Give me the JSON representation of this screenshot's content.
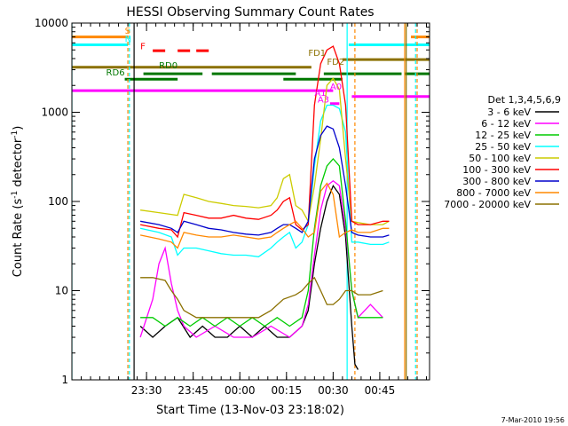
{
  "chart_data": {
    "type": "line",
    "title": "HESSI Observing Summary Count Rates",
    "xlabel": "Start Time (13-Nov-03 23:18:02)",
    "ylabel": "Count Rate (s",
    "ylabel_sup": "-1",
    "ylabel_tail": " detector",
    "ylabel_sup2": "-1",
    "ylabel_close": ")",
    "y_scale": "log",
    "ylim": [
      1,
      10000
    ],
    "xlim_min": [
      -12,
      80
    ],
    "x_ticks": [
      {
        "min": 12,
        "label": "23:30"
      },
      {
        "min": 27,
        "label": "23:45"
      },
      {
        "min": 42,
        "label": "00:00"
      },
      {
        "min": 57,
        "label": "00:15"
      },
      {
        "min": 72,
        "label": "00:30"
      },
      {
        "min": 87,
        "label": "00:45"
      }
    ],
    "y_ticks": [
      {
        "v": 1,
        "label": "1"
      },
      {
        "v": 10,
        "label": "10"
      },
      {
        "v": 100,
        "label": "100"
      },
      {
        "v": 1000,
        "label": "1000"
      },
      {
        "v": 10000,
        "label": "10000"
      }
    ],
    "legend_title": "Det 1,3,4,5,6,9",
    "legend_placement": "right",
    "series": [
      {
        "name": "3 - 6 keV",
        "color": "#000000",
        "points": [
          [
            10,
            4
          ],
          [
            14,
            3
          ],
          [
            18,
            4
          ],
          [
            22,
            5
          ],
          [
            26,
            3
          ],
          [
            30,
            4
          ],
          [
            34,
            3
          ],
          [
            38,
            3
          ],
          [
            42,
            4
          ],
          [
            46,
            3
          ],
          [
            50,
            4
          ],
          [
            54,
            3
          ],
          [
            58,
            3
          ],
          [
            62,
            4
          ],
          [
            64,
            6
          ],
          [
            66,
            20
          ],
          [
            68,
            50
          ],
          [
            70,
            100
          ],
          [
            72,
            150
          ],
          [
            74,
            120
          ],
          [
            76,
            40
          ],
          [
            78,
            4
          ],
          [
            79,
            1.5
          ],
          [
            80,
            1.3
          ]
        ]
      },
      {
        "name": "6 - 12 keV",
        "color": "#ff00ff",
        "points": [
          [
            10,
            3
          ],
          [
            14,
            8
          ],
          [
            16,
            20
          ],
          [
            18,
            30
          ],
          [
            20,
            12
          ],
          [
            22,
            6
          ],
          [
            24,
            4
          ],
          [
            28,
            3
          ],
          [
            34,
            4
          ],
          [
            40,
            3
          ],
          [
            46,
            3
          ],
          [
            52,
            4
          ],
          [
            58,
            3
          ],
          [
            62,
            4
          ],
          [
            64,
            7
          ],
          [
            66,
            25
          ],
          [
            68,
            80
          ],
          [
            70,
            150
          ],
          [
            72,
            170
          ],
          [
            74,
            150
          ],
          [
            76,
            50
          ],
          [
            78,
            10
          ],
          [
            80,
            5
          ],
          [
            84,
            7
          ],
          [
            88,
            5
          ]
        ]
      },
      {
        "name": "12 - 25 keV",
        "color": "#00cc00",
        "points": [
          [
            10,
            5
          ],
          [
            14,
            5
          ],
          [
            18,
            4
          ],
          [
            22,
            5
          ],
          [
            26,
            4
          ],
          [
            30,
            5
          ],
          [
            34,
            4
          ],
          [
            38,
            5
          ],
          [
            42,
            4
          ],
          [
            46,
            5
          ],
          [
            50,
            4
          ],
          [
            54,
            5
          ],
          [
            58,
            4
          ],
          [
            62,
            5
          ],
          [
            64,
            10
          ],
          [
            66,
            50
          ],
          [
            68,
            150
          ],
          [
            70,
            250
          ],
          [
            72,
            300
          ],
          [
            74,
            250
          ],
          [
            76,
            60
          ],
          [
            78,
            10
          ],
          [
            80,
            5
          ],
          [
            84,
            5
          ],
          [
            88,
            5
          ]
        ]
      },
      {
        "name": "25 - 50 keV",
        "color": "#00ffff",
        "points": [
          [
            10,
            50
          ],
          [
            16,
            45
          ],
          [
            20,
            40
          ],
          [
            22,
            25
          ],
          [
            24,
            30
          ],
          [
            28,
            30
          ],
          [
            32,
            28
          ],
          [
            36,
            26
          ],
          [
            40,
            25
          ],
          [
            44,
            25
          ],
          [
            48,
            24
          ],
          [
            52,
            30
          ],
          [
            54,
            35
          ],
          [
            56,
            40
          ],
          [
            58,
            45
          ],
          [
            60,
            30
          ],
          [
            62,
            35
          ],
          [
            64,
            55
          ],
          [
            66,
            250
          ],
          [
            68,
            800
          ],
          [
            70,
            1200
          ],
          [
            72,
            1200
          ],
          [
            74,
            1100
          ],
          [
            76,
            600
          ],
          [
            78,
            35
          ],
          [
            80,
            35
          ],
          [
            84,
            33
          ],
          [
            88,
            33
          ],
          [
            90,
            35
          ]
        ]
      },
      {
        "name": "50 - 100 keV",
        "color": "#cccc00",
        "points": [
          [
            10,
            80
          ],
          [
            16,
            75
          ],
          [
            22,
            70
          ],
          [
            24,
            120
          ],
          [
            28,
            110
          ],
          [
            32,
            100
          ],
          [
            36,
            95
          ],
          [
            40,
            90
          ],
          [
            44,
            88
          ],
          [
            48,
            85
          ],
          [
            52,
            90
          ],
          [
            54,
            110
          ],
          [
            56,
            180
          ],
          [
            58,
            200
          ],
          [
            60,
            90
          ],
          [
            62,
            80
          ],
          [
            64,
            60
          ],
          [
            66,
            150
          ],
          [
            68,
            500
          ],
          [
            70,
            2000
          ],
          [
            72,
            2400
          ],
          [
            74,
            1800
          ],
          [
            76,
            300
          ],
          [
            78,
            60
          ],
          [
            80,
            58
          ],
          [
            84,
            55
          ],
          [
            88,
            55
          ],
          [
            90,
            60
          ]
        ]
      },
      {
        "name": "100 - 300 keV",
        "color": "#ff0000",
        "points": [
          [
            10,
            55
          ],
          [
            16,
            50
          ],
          [
            20,
            48
          ],
          [
            22,
            40
          ],
          [
            24,
            75
          ],
          [
            28,
            70
          ],
          [
            32,
            65
          ],
          [
            36,
            65
          ],
          [
            40,
            70
          ],
          [
            44,
            65
          ],
          [
            48,
            63
          ],
          [
            52,
            70
          ],
          [
            54,
            80
          ],
          [
            56,
            100
          ],
          [
            58,
            110
          ],
          [
            60,
            55
          ],
          [
            62,
            48
          ],
          [
            64,
            55
          ],
          [
            66,
            1200
          ],
          [
            68,
            3500
          ],
          [
            70,
            5000
          ],
          [
            72,
            5500
          ],
          [
            74,
            3500
          ],
          [
            76,
            1200
          ],
          [
            78,
            60
          ],
          [
            80,
            55
          ],
          [
            84,
            55
          ],
          [
            88,
            60
          ],
          [
            90,
            60
          ]
        ]
      },
      {
        "name": "300 - 800 keV",
        "color": "#0000cc",
        "points": [
          [
            10,
            60
          ],
          [
            16,
            55
          ],
          [
            20,
            50
          ],
          [
            22,
            45
          ],
          [
            24,
            60
          ],
          [
            28,
            55
          ],
          [
            32,
            50
          ],
          [
            36,
            48
          ],
          [
            40,
            45
          ],
          [
            44,
            43
          ],
          [
            48,
            42
          ],
          [
            52,
            45
          ],
          [
            54,
            50
          ],
          [
            56,
            55
          ],
          [
            58,
            55
          ],
          [
            60,
            50
          ],
          [
            62,
            45
          ],
          [
            64,
            60
          ],
          [
            66,
            300
          ],
          [
            68,
            550
          ],
          [
            70,
            700
          ],
          [
            72,
            650
          ],
          [
            74,
            400
          ],
          [
            76,
            150
          ],
          [
            78,
            45
          ],
          [
            80,
            42
          ],
          [
            84,
            40
          ],
          [
            88,
            40
          ],
          [
            90,
            42
          ]
        ]
      },
      {
        "name": "800 - 7000 keV",
        "color": "#ff8800",
        "points": [
          [
            10,
            42
          ],
          [
            16,
            38
          ],
          [
            20,
            35
          ],
          [
            22,
            30
          ],
          [
            24,
            45
          ],
          [
            28,
            42
          ],
          [
            32,
            40
          ],
          [
            36,
            40
          ],
          [
            40,
            42
          ],
          [
            44,
            40
          ],
          [
            48,
            38
          ],
          [
            52,
            40
          ],
          [
            54,
            45
          ],
          [
            56,
            50
          ],
          [
            58,
            55
          ],
          [
            60,
            60
          ],
          [
            62,
            50
          ],
          [
            64,
            40
          ],
          [
            66,
            45
          ],
          [
            68,
            130
          ],
          [
            70,
            160
          ],
          [
            72,
            120
          ],
          [
            74,
            40
          ],
          [
            76,
            45
          ],
          [
            78,
            48
          ],
          [
            80,
            45
          ],
          [
            84,
            45
          ],
          [
            88,
            50
          ],
          [
            90,
            50
          ]
        ]
      },
      {
        "name": "7000 - 20000 keV",
        "color": "#8b7000",
        "points": [
          [
            10,
            14
          ],
          [
            14,
            14
          ],
          [
            18,
            13
          ],
          [
            20,
            10
          ],
          [
            22,
            8
          ],
          [
            24,
            6
          ],
          [
            28,
            5
          ],
          [
            32,
            5
          ],
          [
            36,
            5
          ],
          [
            40,
            5
          ],
          [
            44,
            5
          ],
          [
            48,
            5
          ],
          [
            52,
            6
          ],
          [
            56,
            8
          ],
          [
            60,
            9
          ],
          [
            62,
            10
          ],
          [
            64,
            12
          ],
          [
            66,
            14
          ],
          [
            68,
            10
          ],
          [
            70,
            7
          ],
          [
            72,
            7
          ],
          [
            74,
            8
          ],
          [
            76,
            10
          ],
          [
            78,
            10
          ],
          [
            80,
            9
          ],
          [
            84,
            9
          ],
          [
            88,
            10
          ]
        ]
      }
    ],
    "annotations": [
      {
        "text": "S",
        "color": "#ff8800",
        "min": 5,
        "value": 7600
      },
      {
        "text": "N",
        "color": "#00ffff",
        "min": 5,
        "value": 6100
      },
      {
        "text": "F",
        "color": "#ff0000",
        "min": 10,
        "value": 5100
      },
      {
        "text": "FD1",
        "color": "#8b7000",
        "min": 64,
        "value": 4300
      },
      {
        "text": "FD2",
        "color": "#8b7000",
        "min": 70,
        "value": 3400
      },
      {
        "text": "RD0",
        "color": "#007700",
        "min": 16,
        "value": 3100
      },
      {
        "text": "RD6",
        "color": "#007700",
        "min": -1,
        "value": 2600
      },
      {
        "text": "A0",
        "color": "#ff00ff",
        "min": 71,
        "value": 1800
      },
      {
        "text": "A1",
        "color": "#ff00ff",
        "min": 66,
        "value": 1530
      },
      {
        "text": "A3",
        "color": "#ff00ff",
        "min": 67,
        "value": 1290
      }
    ],
    "flag_bars": [
      {
        "color": "#ff8800",
        "value": 7000,
        "segments": [
          [
            -12,
            6
          ],
          [
            97,
            103
          ]
        ]
      },
      {
        "color": "#00ffff",
        "value": 5700,
        "segments": [
          [
            -12,
            6
          ],
          [
            77,
            103
          ]
        ]
      },
      {
        "color": "#ff0000",
        "value": 4900,
        "segments": [
          [
            14,
            18
          ],
          [
            22,
            26
          ],
          [
            28,
            32
          ]
        ]
      },
      {
        "color": "#8b7000",
        "value": 3200,
        "segments": [
          [
            -12,
            65
          ]
        ]
      },
      {
        "color": "#8b7000",
        "value": 3900,
        "segments": [
          [
            75,
            103
          ]
        ]
      },
      {
        "color": "#007700",
        "value": 2700,
        "segments": [
          [
            11,
            30
          ],
          [
            33,
            60
          ],
          [
            69,
            94
          ],
          [
            95,
            103
          ]
        ]
      },
      {
        "color": "#007700",
        "value": 2350,
        "segments": [
          [
            5,
            22
          ],
          [
            56,
            75
          ]
        ]
      },
      {
        "color": "#ff00ff",
        "value": 1750,
        "segments": [
          [
            -12,
            72
          ]
        ]
      },
      {
        "color": "#ff00ff",
        "value": 1500,
        "segments": [
          [
            78,
            103
          ]
        ]
      },
      {
        "color": "#ff00ff",
        "value": 1250,
        "segments": [
          [
            71,
            74
          ]
        ]
      }
    ],
    "vertical_lines": [
      {
        "min": -12,
        "color": "#00ffff"
      },
      {
        "min": 6,
        "color": "#ff8800",
        "dashed": true
      },
      {
        "min": 6.5,
        "color": "#00ffff",
        "dashed": true
      },
      {
        "min": 8,
        "color": "#000000"
      },
      {
        "min": 76.5,
        "color": "#00ffff"
      },
      {
        "min": 79,
        "color": "#ff8800",
        "dashed": true
      },
      {
        "min": 95,
        "color": "#ff8800"
      },
      {
        "min": 95.5,
        "color": "#8b7000"
      },
      {
        "min": 98.5,
        "color": "#00ffff",
        "dashed": true
      },
      {
        "min": 99,
        "color": "#ff8800",
        "dashed": true
      }
    ]
  },
  "footer": {
    "date": "7-Mar-2010 19:56"
  }
}
